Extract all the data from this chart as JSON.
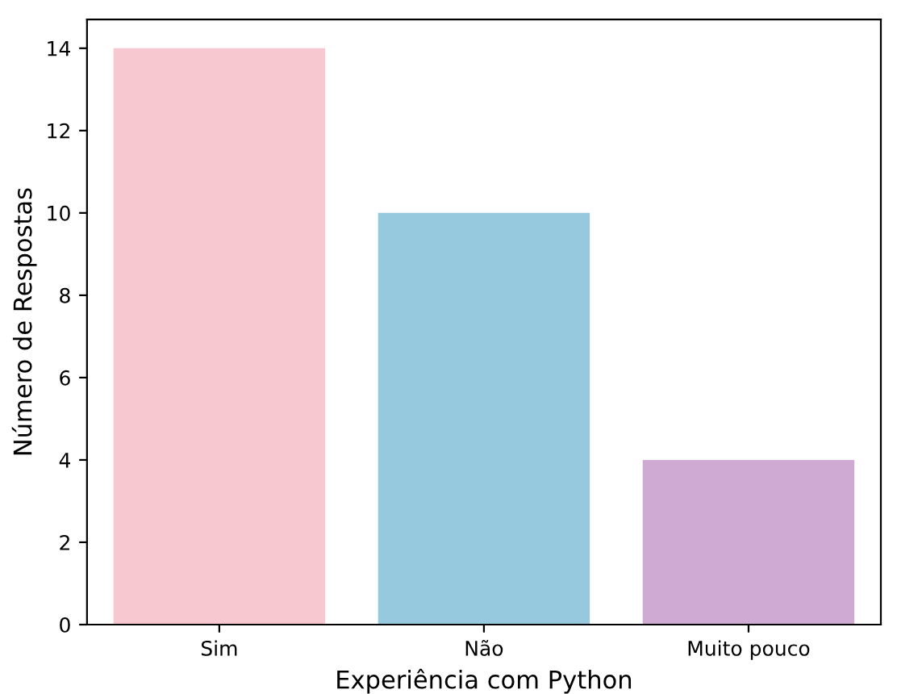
{
  "chart_data": {
    "type": "bar",
    "xlabel": "Experiência com Python",
    "ylabel": "Número de Respostas",
    "categories": [
      "Sim",
      "Não",
      "Muito pouco"
    ],
    "values": [
      14,
      10,
      4
    ],
    "colors": [
      "#f7c8d0",
      "#96c8de",
      "#cfaad2"
    ],
    "ylim": [
      0,
      14.7
    ],
    "yticks": [
      0,
      2,
      4,
      6,
      8,
      10,
      12,
      14
    ],
    "grid": false,
    "legend": false
  }
}
